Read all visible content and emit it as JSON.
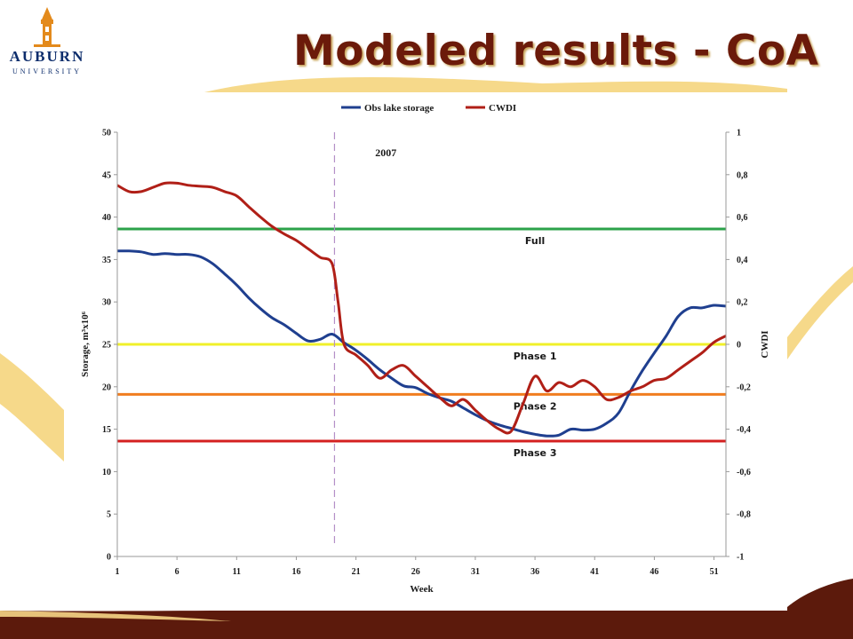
{
  "slide": {
    "title": "Modeled results - CoA",
    "logo": {
      "word1": "AUBURN",
      "word2": "UNIVERSITY"
    }
  },
  "colors": {
    "title": "#6b1a0a",
    "maroon": "#5c1a0c",
    "gold": "#f6d98a",
    "navy": "#0d2d6c"
  },
  "chart_data": {
    "type": "line",
    "title": "",
    "xlabel": "Week",
    "ylabel": "Storage, m³x10⁶",
    "y2label": "CWDI",
    "annotation": "2007",
    "legend_position": "top",
    "xlim": [
      1,
      52
    ],
    "ylim": [
      0,
      50
    ],
    "y2lim": [
      -1,
      1
    ],
    "x_ticks": [
      1,
      6,
      11,
      16,
      21,
      26,
      31,
      36,
      41,
      46,
      51
    ],
    "y_ticks": [
      "0",
      "5",
      "10",
      "15",
      "20",
      "25",
      "30",
      "35",
      "40",
      "45",
      "50"
    ],
    "y2_ticks": [
      "-1",
      "-0,8",
      "-0,6",
      "-0,4",
      "-0,2",
      "0",
      "0,2",
      "0,4",
      "0,6",
      "0,8",
      "1"
    ],
    "vline_week": 19.2,
    "series": [
      {
        "name": "Obs lake storage",
        "axis": "left",
        "color": "#1f3f8f",
        "x": [
          1,
          2,
          3,
          4,
          5,
          6,
          7,
          8,
          9,
          10,
          11,
          12,
          13,
          14,
          15,
          16,
          17,
          18,
          19,
          20,
          21,
          22,
          23,
          24,
          25,
          26,
          27,
          28,
          29,
          30,
          31,
          32,
          33,
          34,
          35,
          36,
          37,
          38,
          39,
          40,
          41,
          42,
          43,
          44,
          45,
          46,
          47,
          48,
          49,
          50,
          51,
          52
        ],
        "values": [
          36,
          36,
          35.9,
          35.6,
          35.7,
          35.6,
          35.6,
          35.3,
          34.5,
          33.3,
          32,
          30.5,
          29.2,
          28.1,
          27.3,
          26.3,
          25.4,
          25.6,
          26.2,
          25.2,
          24.3,
          23.2,
          22,
          21,
          20.1,
          19.9,
          19.2,
          18.7,
          18.3,
          17.5,
          16.7,
          16,
          15.5,
          15.1,
          14.7,
          14.4,
          14.2,
          14.3,
          15,
          14.9,
          15,
          15.7,
          16.9,
          19.5,
          21.9,
          24,
          26,
          28.3,
          29.3,
          29.3,
          29.6,
          29.5
        ]
      },
      {
        "name": "CWDI",
        "axis": "right",
        "color": "#b01f17",
        "x": [
          1,
          2,
          3,
          4,
          5,
          6,
          7,
          8,
          9,
          10,
          11,
          12,
          13,
          14,
          15,
          16,
          17,
          18,
          19,
          19.5,
          20,
          21,
          22,
          23,
          24,
          25,
          26,
          27,
          28,
          29,
          30,
          31,
          32,
          33,
          34,
          35,
          36,
          37,
          38,
          39,
          40,
          41,
          42,
          43,
          44,
          45,
          46,
          47,
          48,
          49,
          50,
          51,
          52
        ],
        "values": [
          0.75,
          0.72,
          0.72,
          0.74,
          0.76,
          0.76,
          0.75,
          0.745,
          0.74,
          0.72,
          0.7,
          0.65,
          0.6,
          0.555,
          0.52,
          0.49,
          0.45,
          0.41,
          0.38,
          0.2,
          0.0,
          -0.05,
          -0.1,
          -0.16,
          -0.12,
          -0.1,
          -0.15,
          -0.2,
          -0.25,
          -0.29,
          -0.26,
          -0.31,
          -0.36,
          -0.4,
          -0.41,
          -0.28,
          -0.15,
          -0.22,
          -0.18,
          -0.2,
          -0.17,
          -0.2,
          -0.26,
          -0.25,
          -0.22,
          -0.2,
          -0.17,
          -0.16,
          -0.12,
          -0.08,
          -0.04,
          0.01,
          0.04
        ]
      }
    ],
    "thresholds": [
      {
        "name": "Full",
        "value": 38.6,
        "color": "#2ca24a"
      },
      {
        "name": "Phase 1",
        "value": 25,
        "color": "#f0f02a"
      },
      {
        "name": "Phase 2",
        "value": 19.1,
        "color": "#f07d1f"
      },
      {
        "name": "Phase 3",
        "value": 13.6,
        "color": "#d42020"
      }
    ]
  }
}
